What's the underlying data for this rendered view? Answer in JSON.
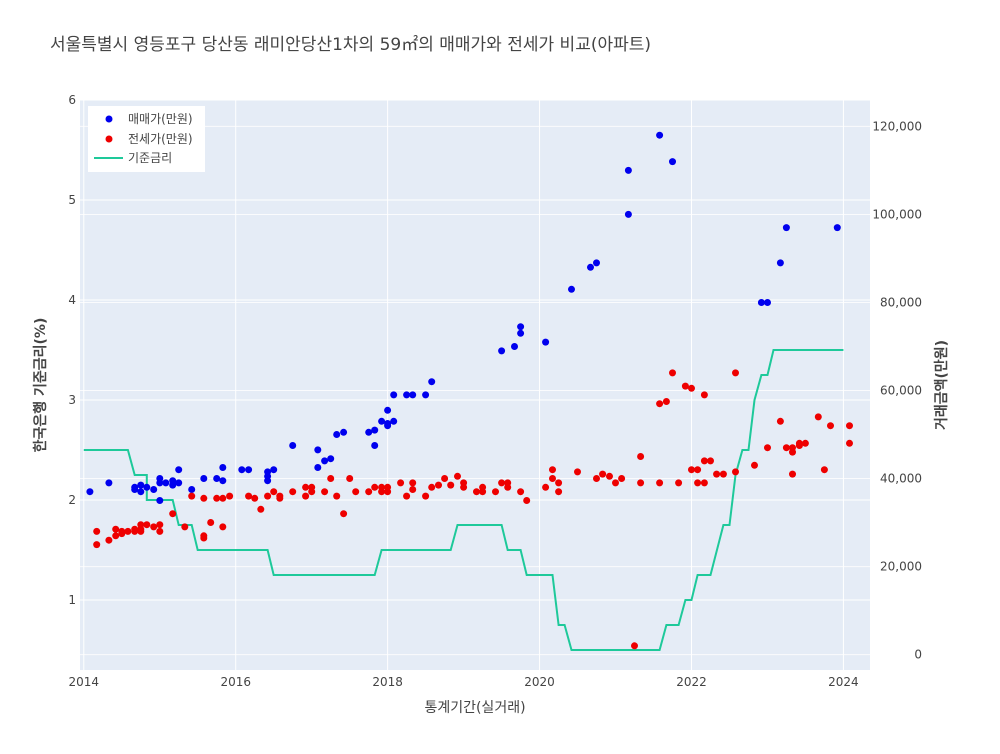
{
  "chart_data": {
    "type": "scatter",
    "title": "서울특별시 영등포구 당산동 래미안당산1차의 59㎡의 매매가와 전세가 비교(아파트)",
    "xlabel": "통계기간(실거래)",
    "ylabel_left": "한국은행 기준금리(%)",
    "ylabel_right": "거래금액(만원)",
    "xlim": [
      2013.95,
      2024.35
    ],
    "ylim_left": [
      0.3,
      6.0
    ],
    "ylim_right": [
      -3500,
      126000
    ],
    "x_ticks": [
      2014,
      2016,
      2018,
      2020,
      2022,
      2024
    ],
    "x_tick_labels": [
      "2014",
      "2016",
      "2018",
      "2020",
      "2022",
      "2024"
    ],
    "left_ticks": [
      1,
      2,
      3,
      4,
      5,
      6
    ],
    "left_tick_labels": [
      "1",
      "2",
      "3",
      "4",
      "5",
      "6"
    ],
    "right_ticks": [
      0,
      20000,
      40000,
      60000,
      80000,
      100000,
      120000
    ],
    "right_tick_labels": [
      "0",
      "20,000",
      "40,000",
      "60,000",
      "80,000",
      "100,000",
      "120,000"
    ],
    "grid": true,
    "legend_position": "top-left",
    "legend": [
      "매매가(만원)",
      "전세가(만원)",
      "기준금리"
    ],
    "series": [
      {
        "name": "매매가(만원)",
        "type": "scatter",
        "axis": "right",
        "color": "#0000ee",
        "points": [
          [
            2014.08,
            37000
          ],
          [
            2014.33,
            39000
          ],
          [
            2014.67,
            38000
          ],
          [
            2014.67,
            37500
          ],
          [
            2014.75,
            38500
          ],
          [
            2014.75,
            37000
          ],
          [
            2014.83,
            38000
          ],
          [
            2014.92,
            37500
          ],
          [
            2015.0,
            40000
          ],
          [
            2015.0,
            39000
          ],
          [
            2015.0,
            35000
          ],
          [
            2015.08,
            39000
          ],
          [
            2015.17,
            39500
          ],
          [
            2015.17,
            38500
          ],
          [
            2015.25,
            39000
          ],
          [
            2015.25,
            42000
          ],
          [
            2015.42,
            37500
          ],
          [
            2015.58,
            40000
          ],
          [
            2015.75,
            40000
          ],
          [
            2015.83,
            39500
          ],
          [
            2015.83,
            42500
          ],
          [
            2016.08,
            42000
          ],
          [
            2016.17,
            42000
          ],
          [
            2016.42,
            41500
          ],
          [
            2016.42,
            40500
          ],
          [
            2016.42,
            39500
          ],
          [
            2016.5,
            42000
          ],
          [
            2016.75,
            47500
          ],
          [
            2017.08,
            46500
          ],
          [
            2017.08,
            42500
          ],
          [
            2017.17,
            44000
          ],
          [
            2017.25,
            44500
          ],
          [
            2017.33,
            50000
          ],
          [
            2017.42,
            50500
          ],
          [
            2017.75,
            50500
          ],
          [
            2017.83,
            51000
          ],
          [
            2017.83,
            47500
          ],
          [
            2017.92,
            53000
          ],
          [
            2018.0,
            52500
          ],
          [
            2018.0,
            55500
          ],
          [
            2018.0,
            52000
          ],
          [
            2018.08,
            59000
          ],
          [
            2018.08,
            53000
          ],
          [
            2018.25,
            59000
          ],
          [
            2018.33,
            59000
          ],
          [
            2018.5,
            59000
          ],
          [
            2018.58,
            62000
          ],
          [
            2019.5,
            69000
          ],
          [
            2019.67,
            70000
          ],
          [
            2019.75,
            73000
          ],
          [
            2019.75,
            74500
          ],
          [
            2020.08,
            71000
          ],
          [
            2020.42,
            83000
          ],
          [
            2020.67,
            88000
          ],
          [
            2020.75,
            89000
          ],
          [
            2021.17,
            110000
          ],
          [
            2021.17,
            100000
          ],
          [
            2021.58,
            118000
          ],
          [
            2021.75,
            112000
          ],
          [
            2022.92,
            80000
          ],
          [
            2023.0,
            80000
          ],
          [
            2023.17,
            89000
          ],
          [
            2023.25,
            97000
          ],
          [
            2023.92,
            97000
          ]
        ]
      },
      {
        "name": "전세가(만원)",
        "type": "scatter",
        "axis": "right",
        "color": "#ee0000",
        "points": [
          [
            2014.17,
            25000
          ],
          [
            2014.17,
            28000
          ],
          [
            2014.33,
            26000
          ],
          [
            2014.42,
            27000
          ],
          [
            2014.42,
            28500
          ],
          [
            2014.5,
            27500
          ],
          [
            2014.5,
            28000
          ],
          [
            2014.58,
            28000
          ],
          [
            2014.67,
            28500
          ],
          [
            2014.67,
            28000
          ],
          [
            2014.75,
            29500
          ],
          [
            2014.75,
            28000
          ],
          [
            2014.75,
            28500
          ],
          [
            2014.83,
            29500
          ],
          [
            2014.92,
            29000
          ],
          [
            2015.0,
            28000
          ],
          [
            2015.0,
            29500
          ],
          [
            2015.17,
            32000
          ],
          [
            2015.33,
            29000
          ],
          [
            2015.42,
            36000
          ],
          [
            2015.58,
            26500
          ],
          [
            2015.58,
            27000
          ],
          [
            2015.58,
            35500
          ],
          [
            2015.67,
            30000
          ],
          [
            2015.75,
            35500
          ],
          [
            2015.83,
            35500
          ],
          [
            2015.83,
            29000
          ],
          [
            2015.92,
            36000
          ],
          [
            2016.17,
            36000
          ],
          [
            2016.25,
            35500
          ],
          [
            2016.33,
            33000
          ],
          [
            2016.42,
            36000
          ],
          [
            2016.5,
            37000
          ],
          [
            2016.58,
            36000
          ],
          [
            2016.58,
            35500
          ],
          [
            2016.75,
            37000
          ],
          [
            2016.92,
            38000
          ],
          [
            2016.92,
            36000
          ],
          [
            2017.0,
            37000
          ],
          [
            2017.0,
            38000
          ],
          [
            2017.17,
            37000
          ],
          [
            2017.25,
            40000
          ],
          [
            2017.33,
            36000
          ],
          [
            2017.42,
            32000
          ],
          [
            2017.5,
            40000
          ],
          [
            2017.58,
            37000
          ],
          [
            2017.75,
            37000
          ],
          [
            2017.83,
            38000
          ],
          [
            2017.92,
            37000
          ],
          [
            2017.92,
            38000
          ],
          [
            2018.0,
            37000
          ],
          [
            2018.0,
            38000
          ],
          [
            2018.17,
            39000
          ],
          [
            2018.25,
            36000
          ],
          [
            2018.33,
            37500
          ],
          [
            2018.33,
            39000
          ],
          [
            2018.5,
            36000
          ],
          [
            2018.58,
            38000
          ],
          [
            2018.67,
            38500
          ],
          [
            2018.75,
            40000
          ],
          [
            2018.83,
            38500
          ],
          [
            2018.92,
            40500
          ],
          [
            2019.0,
            39000
          ],
          [
            2019.0,
            38000
          ],
          [
            2019.17,
            37000
          ],
          [
            2019.25,
            38000
          ],
          [
            2019.25,
            37000
          ],
          [
            2019.42,
            37000
          ],
          [
            2019.5,
            39000
          ],
          [
            2019.58,
            39000
          ],
          [
            2019.58,
            38000
          ],
          [
            2019.75,
            37000
          ],
          [
            2019.83,
            35000
          ],
          [
            2020.08,
            38000
          ],
          [
            2020.17,
            42000
          ],
          [
            2020.17,
            40000
          ],
          [
            2020.25,
            37000
          ],
          [
            2020.25,
            39000
          ],
          [
            2020.5,
            41500
          ],
          [
            2020.75,
            40000
          ],
          [
            2020.83,
            41000
          ],
          [
            2020.92,
            40500
          ],
          [
            2021.0,
            39000
          ],
          [
            2021.08,
            40000
          ],
          [
            2021.25,
            2000
          ],
          [
            2021.33,
            39000
          ],
          [
            2021.33,
            45000
          ],
          [
            2021.58,
            57000
          ],
          [
            2021.58,
            39000
          ],
          [
            2021.67,
            57500
          ],
          [
            2021.75,
            64000
          ],
          [
            2021.83,
            39000
          ],
          [
            2021.92,
            61000
          ],
          [
            2022.0,
            60500
          ],
          [
            2022.0,
            42000
          ],
          [
            2022.08,
            39000
          ],
          [
            2022.08,
            42000
          ],
          [
            2022.17,
            44000
          ],
          [
            2022.17,
            39000
          ],
          [
            2022.17,
            59000
          ],
          [
            2022.25,
            44000
          ],
          [
            2022.33,
            41000
          ],
          [
            2022.42,
            41000
          ],
          [
            2022.58,
            41500
          ],
          [
            2022.58,
            64000
          ],
          [
            2022.83,
            43000
          ],
          [
            2023.0,
            47000
          ],
          [
            2023.17,
            53000
          ],
          [
            2023.25,
            47000
          ],
          [
            2023.33,
            46000
          ],
          [
            2023.33,
            47000
          ],
          [
            2023.33,
            41000
          ],
          [
            2023.42,
            47500
          ],
          [
            2023.42,
            48000
          ],
          [
            2023.5,
            48000
          ],
          [
            2023.67,
            54000
          ],
          [
            2023.75,
            42000
          ],
          [
            2023.83,
            52000
          ],
          [
            2024.08,
            48000
          ],
          [
            2024.08,
            52000
          ]
        ]
      },
      {
        "name": "기준금리",
        "type": "line",
        "axis": "left",
        "color": "#1ec99a",
        "points": [
          [
            2014.0,
            2.5
          ],
          [
            2014.58,
            2.5
          ],
          [
            2014.67,
            2.25
          ],
          [
            2014.83,
            2.25
          ],
          [
            2014.83,
            2.0
          ],
          [
            2015.17,
            2.0
          ],
          [
            2015.25,
            1.75
          ],
          [
            2015.42,
            1.75
          ],
          [
            2015.5,
            1.5
          ],
          [
            2016.42,
            1.5
          ],
          [
            2016.5,
            1.25
          ],
          [
            2017.83,
            1.25
          ],
          [
            2017.92,
            1.5
          ],
          [
            2018.83,
            1.5
          ],
          [
            2018.92,
            1.75
          ],
          [
            2019.5,
            1.75
          ],
          [
            2019.58,
            1.5
          ],
          [
            2019.75,
            1.5
          ],
          [
            2019.83,
            1.25
          ],
          [
            2020.17,
            1.25
          ],
          [
            2020.25,
            0.75
          ],
          [
            2020.33,
            0.75
          ],
          [
            2020.42,
            0.5
          ],
          [
            2021.58,
            0.5
          ],
          [
            2021.67,
            0.75
          ],
          [
            2021.83,
            0.75
          ],
          [
            2021.92,
            1.0
          ],
          [
            2022.0,
            1.0
          ],
          [
            2022.08,
            1.25
          ],
          [
            2022.25,
            1.25
          ],
          [
            2022.42,
            1.75
          ],
          [
            2022.5,
            1.75
          ],
          [
            2022.58,
            2.25
          ],
          [
            2022.67,
            2.5
          ],
          [
            2022.75,
            2.5
          ],
          [
            2022.83,
            3.0
          ],
          [
            2022.92,
            3.25
          ],
          [
            2023.0,
            3.25
          ],
          [
            2023.08,
            3.5
          ],
          [
            2024.0,
            3.5
          ]
        ]
      }
    ]
  }
}
